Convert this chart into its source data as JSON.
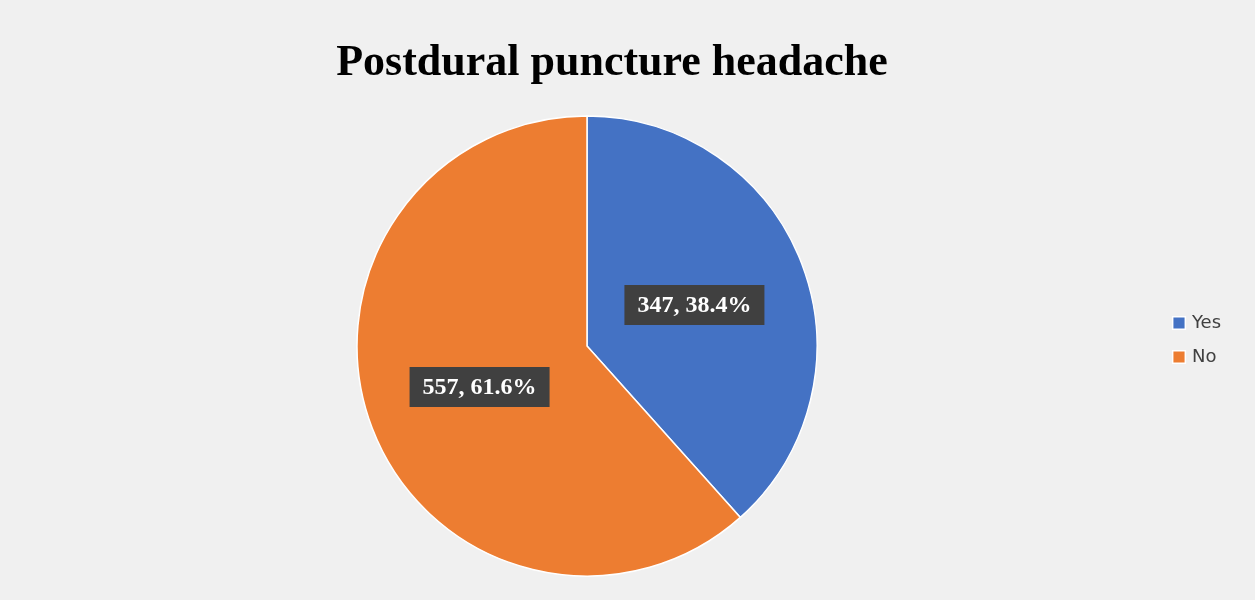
{
  "chart_data": {
    "type": "pie",
    "title": "Postdural puncture headache",
    "categories": [
      "Yes",
      "No"
    ],
    "values": [
      347,
      557
    ],
    "colors": [
      "#4472c4",
      "#ed7d31"
    ],
    "value_labels": [
      "347, 38.4%",
      "557, 61.6%"
    ],
    "legend": "right"
  }
}
